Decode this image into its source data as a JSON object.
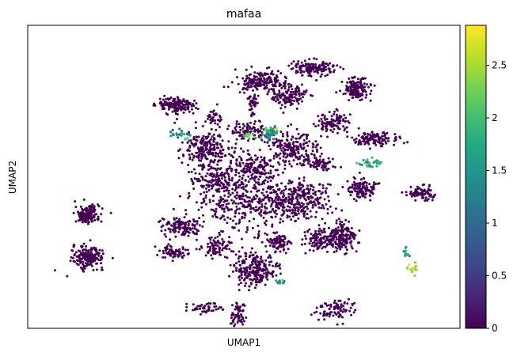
{
  "chart_data": {
    "type": "scatter",
    "title": "mafaa",
    "xlabel": "UMAP1",
    "ylabel": "UMAP2",
    "x_ticks": "none",
    "y_ticks": "none",
    "grid": false,
    "colormap": "viridis",
    "colorbar": {
      "vmin": 0,
      "vmax": 2.88,
      "ticks": [
        0,
        0.5,
        1,
        1.5,
        2,
        2.5
      ],
      "tick_labels": [
        "0",
        "0.5",
        "1",
        "1.5",
        "2",
        "2.5"
      ]
    },
    "background_value": 0,
    "clusters_note": "dense embedding; clusters listed as approximate centers in plot units (0-100 across, 0-100 up) with spread and point count",
    "clusters": [
      {
        "cx": 13.8,
        "cy": 37.5,
        "sx": 1.4,
        "sy": 1.5,
        "n": 170,
        "v": 0
      },
      {
        "cx": 14.0,
        "cy": 23.5,
        "sx": 1.8,
        "sy": 1.8,
        "n": 180,
        "v": 0
      },
      {
        "cx": 34.5,
        "cy": 73.5,
        "sx": 2.2,
        "sy": 1.4,
        "n": 160,
        "v": 0
      },
      {
        "cx": 41.3,
        "cy": 59.5,
        "sx": 2.6,
        "sy": 3.0,
        "n": 220,
        "v": 0
      },
      {
        "cx": 35.5,
        "cy": 33.5,
        "sx": 2.3,
        "sy": 1.6,
        "n": 130,
        "v": 0
      },
      {
        "cx": 53.6,
        "cy": 81.5,
        "sx": 2.8,
        "sy": 1.6,
        "n": 170,
        "v": 0
      },
      {
        "cx": 60.4,
        "cy": 77.0,
        "sx": 2.0,
        "sy": 2.0,
        "n": 150,
        "v": 0
      },
      {
        "cx": 66.0,
        "cy": 86.0,
        "sx": 2.4,
        "sy": 1.3,
        "n": 140,
        "v": 0
      },
      {
        "cx": 76.0,
        "cy": 79.0,
        "sx": 1.8,
        "sy": 1.8,
        "n": 150,
        "v": 0
      },
      {
        "cx": 71.0,
        "cy": 68.0,
        "sx": 2.0,
        "sy": 1.6,
        "n": 100,
        "v": 0
      },
      {
        "cx": 80.5,
        "cy": 62.5,
        "sx": 2.5,
        "sy": 1.1,
        "n": 130,
        "v": 0
      },
      {
        "cx": 77.5,
        "cy": 46.0,
        "sx": 1.5,
        "sy": 1.6,
        "n": 120,
        "v": 0
      },
      {
        "cx": 91.0,
        "cy": 44.5,
        "sx": 1.6,
        "sy": 1.1,
        "n": 80,
        "v": 0
      },
      {
        "cx": 73.0,
        "cy": 30.0,
        "sx": 1.6,
        "sy": 2.5,
        "n": 150,
        "v": 0
      },
      {
        "cx": 67.5,
        "cy": 29.5,
        "sx": 2.2,
        "sy": 1.8,
        "n": 120,
        "v": 0
      },
      {
        "cx": 61.0,
        "cy": 59.0,
        "sx": 3.0,
        "sy": 3.0,
        "n": 210,
        "v": 0
      },
      {
        "cx": 61.5,
        "cy": 42.0,
        "sx": 4.2,
        "sy": 3.3,
        "n": 320,
        "v": 0
      },
      {
        "cx": 49.5,
        "cy": 42.0,
        "sx": 5.0,
        "sy": 5.5,
        "n": 320,
        "v": 0
      },
      {
        "cx": 52.0,
        "cy": 53.0,
        "sx": 2.6,
        "sy": 2.6,
        "n": 150,
        "v": 0
      },
      {
        "cx": 52.5,
        "cy": 19.5,
        "sx": 2.6,
        "sy": 3.0,
        "n": 230,
        "v": 0
      },
      {
        "cx": 48.5,
        "cy": 4.5,
        "sx": 0.9,
        "sy": 2.0,
        "n": 60,
        "v": 0
      },
      {
        "cx": 41.0,
        "cy": 6.5,
        "sx": 2.0,
        "sy": 0.8,
        "n": 50,
        "v": 0
      },
      {
        "cx": 71.0,
        "cy": 6.5,
        "sx": 2.2,
        "sy": 2.0,
        "n": 90,
        "v": 0
      },
      {
        "cx": 44.0,
        "cy": 27.0,
        "sx": 1.8,
        "sy": 1.5,
        "n": 80,
        "v": 0
      },
      {
        "cx": 34.0,
        "cy": 25.0,
        "sx": 1.7,
        "sy": 1.0,
        "n": 70,
        "v": 0
      },
      {
        "cx": 58.0,
        "cy": 28.0,
        "sx": 1.5,
        "sy": 1.5,
        "n": 80,
        "v": 0
      },
      {
        "cx": 44.0,
        "cy": 49.0,
        "sx": 3.0,
        "sy": 2.2,
        "n": 130,
        "v": 0
      },
      {
        "cx": 67.5,
        "cy": 54.5,
        "sx": 1.6,
        "sy": 1.1,
        "n": 70,
        "v": 0
      },
      {
        "cx": 43.0,
        "cy": 69.5,
        "sx": 1.0,
        "sy": 1.4,
        "n": 40,
        "v": 0
      },
      {
        "cx": 52.0,
        "cy": 74.0,
        "sx": 0.5,
        "sy": 2.2,
        "n": 50,
        "v": 0
      },
      {
        "cx": 51.5,
        "cy": 65.0,
        "sx": 2.2,
        "sy": 1.6,
        "n": 90,
        "v": 0
      }
    ],
    "hotspots": [
      {
        "cx": 56.5,
        "cy": 65.0,
        "sx": 0.9,
        "sy": 0.8,
        "n": 40,
        "vmin": 1.0,
        "vmax": 2.7
      },
      {
        "cx": 55.5,
        "cy": 63.5,
        "sx": 1.0,
        "sy": 0.7,
        "n": 25,
        "vmin": 0.5,
        "vmax": 2.0
      },
      {
        "cx": 51.0,
        "cy": 63.5,
        "sx": 0.8,
        "sy": 0.6,
        "n": 12,
        "vmin": 1.5,
        "vmax": 2.6
      },
      {
        "cx": 36.0,
        "cy": 64.0,
        "sx": 1.4,
        "sy": 1.2,
        "n": 25,
        "vmin": 0.6,
        "vmax": 2.2
      },
      {
        "cx": 79.5,
        "cy": 54.5,
        "sx": 1.4,
        "sy": 0.7,
        "n": 30,
        "vmin": 1.0,
        "vmax": 2.5
      },
      {
        "cx": 87.5,
        "cy": 25.0,
        "sx": 0.3,
        "sy": 0.8,
        "n": 12,
        "vmin": 1.2,
        "vmax": 2.0
      },
      {
        "cx": 89.0,
        "cy": 19.5,
        "sx": 0.9,
        "sy": 0.9,
        "n": 18,
        "vmin": 2.3,
        "vmax": 2.8
      },
      {
        "cx": 58.5,
        "cy": 15.5,
        "sx": 0.6,
        "sy": 0.5,
        "n": 14,
        "vmin": 1.0,
        "vmax": 2.5
      }
    ]
  }
}
